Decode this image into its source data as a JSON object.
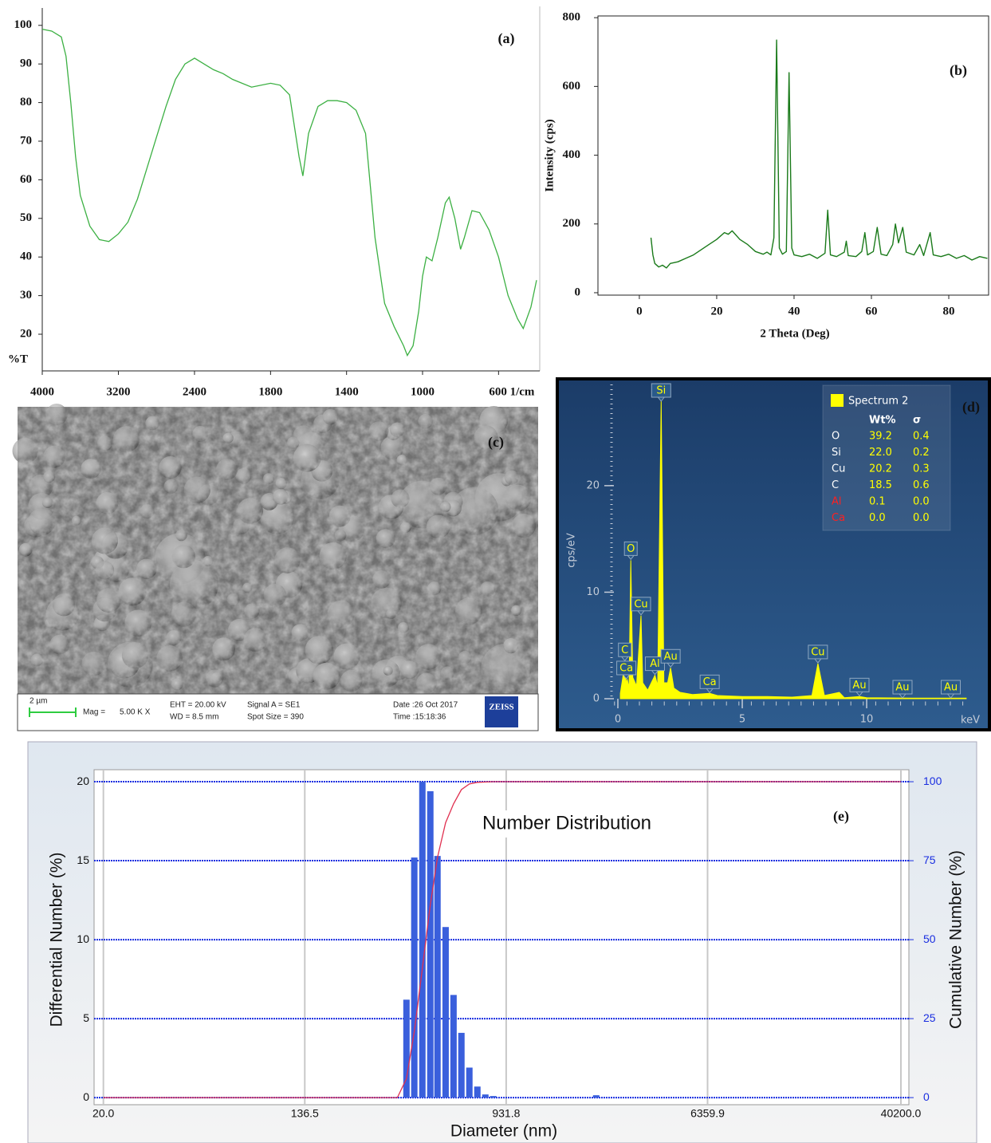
{
  "chart_data": [
    {
      "type": "line",
      "label": "(a)",
      "ylabel": "%T",
      "color": "#3cb043",
      "x": [
        4000,
        3900,
        3800,
        3750,
        3700,
        3650,
        3600,
        3500,
        3400,
        3300,
        3200,
        3100,
        3000,
        2900,
        2800,
        2700,
        2600,
        2500,
        2400,
        2300,
        2200,
        2100,
        2000,
        1900,
        1800,
        1750,
        1700,
        1650,
        1630,
        1600,
        1550,
        1500,
        1450,
        1400,
        1350,
        1300,
        1250,
        1200,
        1150,
        1100,
        1080,
        1050,
        1020,
        1000,
        980,
        950,
        920,
        880,
        860,
        830,
        800,
        780,
        740,
        700,
        650,
        600,
        550,
        500,
        470,
        430,
        400
      ],
      "values": [
        99,
        98.5,
        97,
        92,
        80,
        66,
        56,
        48,
        44.5,
        44,
        46,
        49,
        55,
        63,
        71,
        79,
        86,
        90,
        91.5,
        90,
        88.5,
        87.5,
        86,
        84,
        85,
        84.5,
        82,
        66,
        61,
        72,
        79,
        80.5,
        80.5,
        80,
        78,
        72,
        45,
        28,
        22,
        17,
        14.5,
        17,
        26,
        35,
        40,
        39,
        45,
        54,
        55.5,
        50,
        42,
        45,
        52,
        51.5,
        47,
        40,
        30,
        24,
        21.5,
        27,
        34
      ],
      "xlim": [
        4000,
        400
      ],
      "xscale_break": 2000,
      "xticks": [
        4000,
        3200,
        2400,
        1800,
        1400,
        1000,
        {
          "value": 600,
          "label": "600 1/cm"
        }
      ],
      "ylim": [
        10.5,
        104.5
      ],
      "yticks": [
        20,
        30,
        40,
        50,
        60,
        70,
        80,
        90,
        100
      ]
    },
    {
      "type": "line",
      "label": "(b)",
      "xlabel": "2 Theta (Deg)",
      "ylabel": "Intensity (cps)",
      "color": "#1a7a1a",
      "x": [
        3,
        3.5,
        4,
        5,
        6,
        7,
        8,
        10,
        12,
        14,
        16,
        18,
        20,
        22,
        23,
        24,
        26,
        28,
        30,
        32,
        33,
        34,
        34.8,
        35.5,
        36.2,
        37,
        38,
        38.7,
        39.4,
        40,
        42,
        44,
        46,
        48,
        48.7,
        49.4,
        51,
        53,
        53.5,
        54,
        56,
        57.5,
        58.3,
        59,
        60.5,
        61.5,
        62.5,
        64,
        65.5,
        66.2,
        67,
        68.1,
        69,
        71,
        72.5,
        73.5,
        75.2,
        76,
        78,
        80,
        82,
        84,
        86,
        88,
        90
      ],
      "values": [
        160,
        110,
        85,
        75,
        80,
        72,
        85,
        90,
        100,
        110,
        125,
        140,
        155,
        175,
        170,
        180,
        155,
        140,
        120,
        112,
        118,
        110,
        160,
        735,
        130,
        112,
        120,
        640,
        130,
        110,
        105,
        112,
        100,
        115,
        240,
        110,
        105,
        118,
        150,
        108,
        105,
        120,
        175,
        110,
        120,
        190,
        112,
        108,
        140,
        200,
        145,
        190,
        118,
        110,
        140,
        108,
        175,
        110,
        105,
        112,
        100,
        108,
        95,
        105,
        100
      ],
      "xlim": [
        -10.7,
        90.3
      ],
      "ylim": [
        -7,
        805
      ],
      "xticks": [
        0,
        20,
        40,
        60,
        80
      ],
      "yticks": [
        0,
        200,
        400,
        600,
        800
      ]
    },
    {
      "type": "area",
      "label": "(d)",
      "name": "Spectrum 2",
      "xlabel": "keV",
      "ylabel": "cps/eV",
      "color": "#ffff00",
      "x": [
        0.1,
        0.2,
        0.28,
        0.33,
        0.38,
        0.45,
        0.52,
        0.6,
        0.75,
        0.93,
        1.0,
        1.2,
        1.49,
        1.6,
        1.74,
        1.85,
        2.0,
        2.12,
        2.25,
        2.5,
        3,
        3.69,
        4,
        5,
        6,
        7,
        7.8,
        8.04,
        8.3,
        8.9,
        9.1,
        9.71,
        10,
        12,
        14
      ],
      "values": [
        0.5,
        2,
        3.5,
        1.5,
        1.8,
        1,
        13,
        2,
        1.2,
        7.8,
        1.5,
        0.8,
        2.2,
        1.2,
        28,
        1.5,
        1.5,
        2.9,
        1,
        0.6,
        0.4,
        0.5,
        0.3,
        0.2,
        0.2,
        0.15,
        0.3,
        3.3,
        0.3,
        0.6,
        0.1,
        0.2,
        0.1,
        0.05,
        0.05
      ],
      "xlim": [
        -0.15,
        14.1
      ],
      "ylim": [
        0,
        29.5
      ],
      "xticks": [
        0,
        5,
        10
      ],
      "yticks": [
        0,
        10,
        20
      ],
      "table": {
        "headers": [
          "Wt%",
          "σ"
        ],
        "rows": [
          {
            "element": "O",
            "wt": "39.2",
            "sigma": "0.4",
            "color": "#ffffff"
          },
          {
            "element": "Si",
            "wt": "22.0",
            "sigma": "0.2",
            "color": "#ffffff"
          },
          {
            "element": "Cu",
            "wt": "20.2",
            "sigma": "0.3",
            "color": "#ffffff"
          },
          {
            "element": "C",
            "wt": "18.5",
            "sigma": "0.6",
            "color": "#ffffff"
          },
          {
            "element": "Al",
            "wt": "0.1",
            "sigma": "0.0",
            "color": "#ff2020"
          },
          {
            "element": "Ca",
            "wt": "0.0",
            "sigma": "0.0",
            "color": "#ff2020"
          }
        ]
      },
      "peak_labels": [
        {
          "text": "Si",
          "x": 1.74
        },
        {
          "text": "O",
          "x": 0.52
        },
        {
          "text": "Cu",
          "x": 0.93
        },
        {
          "text": "C",
          "x": 0.28
        },
        {
          "text": "Ca",
          "x": 0.34
        },
        {
          "text": "Al",
          "x": 1.49
        },
        {
          "text": "Au",
          "x": 2.12
        },
        {
          "text": "Ca",
          "x": 3.69
        },
        {
          "text": "Cu",
          "x": 8.04
        },
        {
          "text": "Au",
          "x": 9.71
        },
        {
          "text": "Au",
          "x": 11.44
        },
        {
          "text": "Au",
          "x": 13.38
        }
      ]
    },
    {
      "type": "bar",
      "label": "(e)",
      "title": "Number Distribution",
      "xlabel": "Diameter (nm)",
      "ylabel": "Differential Number (%)",
      "y2label": "Cumulative Number (%)",
      "xscale": "log",
      "xlim": [
        18.3,
        43380
      ],
      "ylim": [
        -0.45,
        20.76
      ],
      "y2lim": [
        -2.25,
        103.8
      ],
      "xticks": [
        {
          "value": 20,
          "label": "20.0"
        },
        136.5,
        931.8,
        6359.9,
        {
          "value": 40200,
          "label": "40200.0"
        }
      ],
      "yticks": [
        0,
        5,
        10,
        15,
        20
      ],
      "y2ticks": [
        0,
        25,
        50,
        75,
        100
      ],
      "grid": true,
      "series": [
        {
          "type": "bar",
          "color": "#3a5fdc",
          "x": [
            360,
            388,
            419,
            452,
            484,
            523,
            564,
            608,
            656,
            708,
            764,
            824,
            2199
          ],
          "values": [
            6.2,
            15.2,
            20,
            19.4,
            15.3,
            10.8,
            6.5,
            4.1,
            1.9,
            0.7,
            0.2,
            0.1,
            0.15
          ]
        },
        {
          "type": "line",
          "axis": "y2",
          "color": "#e03050",
          "x": [
            20,
            330,
            360,
            388,
            419,
            452,
            484,
            523,
            564,
            608,
            656,
            708,
            824,
            2199,
            40200
          ],
          "values": [
            0,
            0,
            6,
            21,
            41,
            61,
            76,
            87,
            93,
            97.5,
            99.3,
            99.8,
            100,
            100,
            100
          ]
        }
      ]
    }
  ],
  "image_c": {
    "label": "(c)",
    "scale_bar": "2 µm",
    "mag_label": "Mag =",
    "mag": "5.00 K X",
    "eht": "EHT = 20.00 kV",
    "wd": "WD = 8.5 mm",
    "signal": "Signal A = SE1",
    "spot": "Spot Size = 390",
    "date": "Date :26 Oct 2017",
    "time": "Time :15:18:36",
    "logo": "ZEISS"
  }
}
